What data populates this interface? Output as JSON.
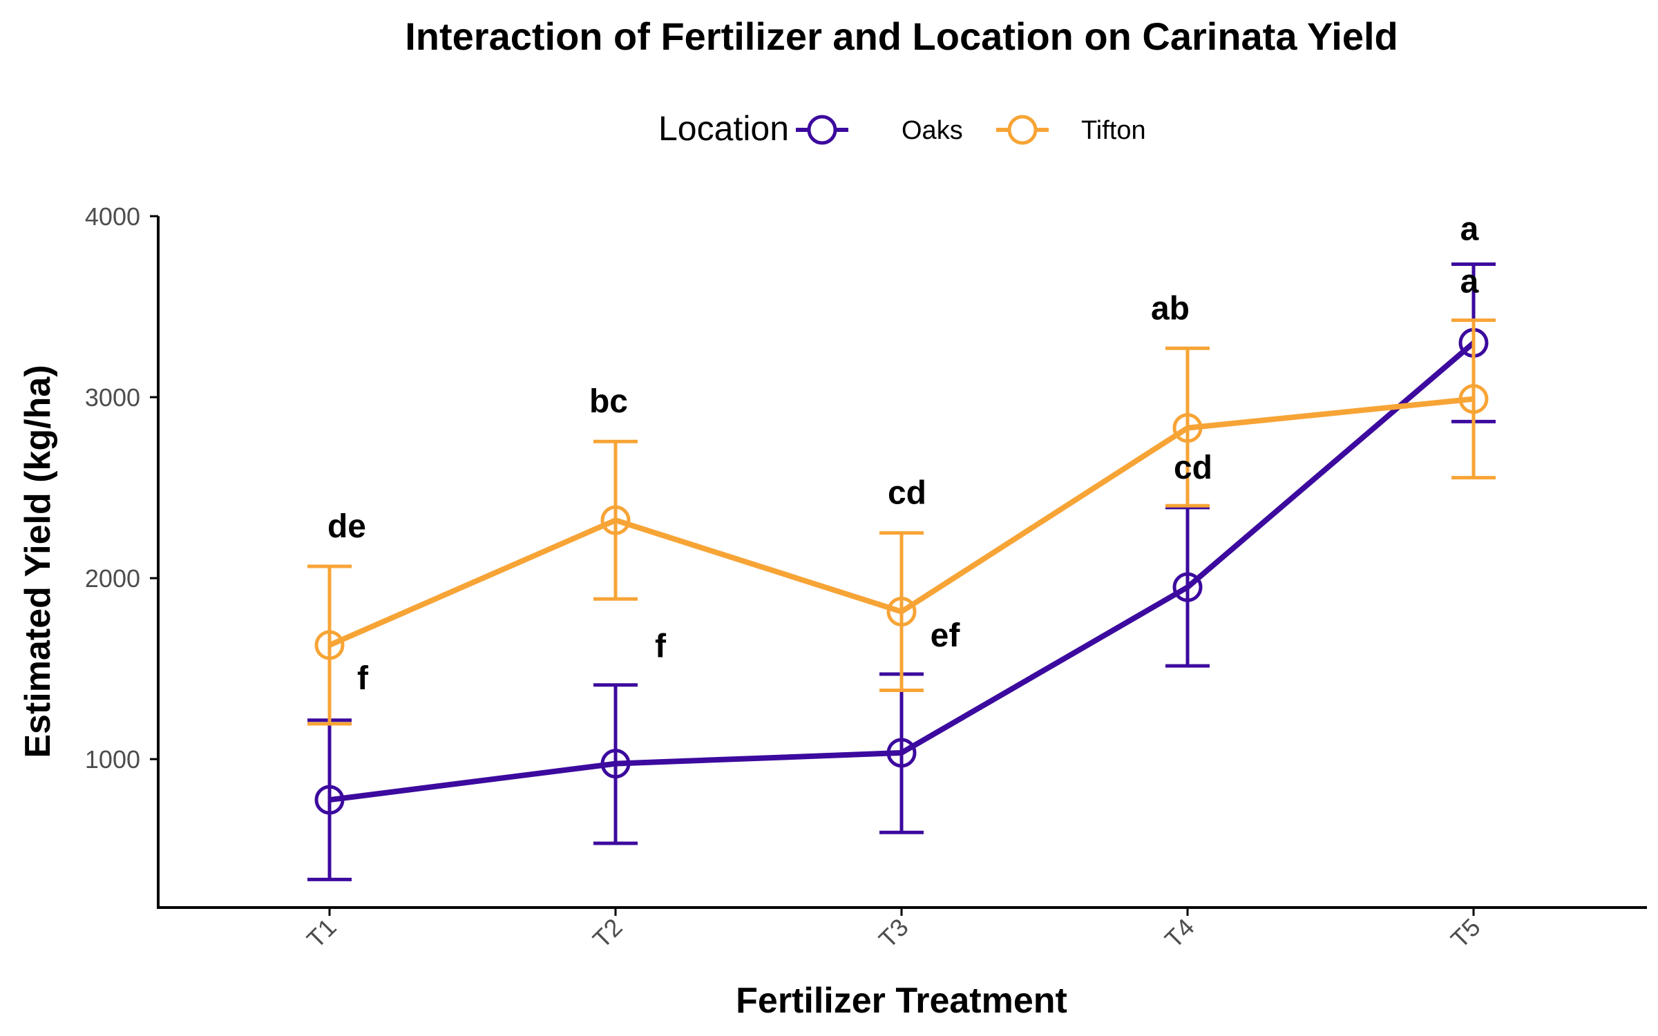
{
  "chart_data": {
    "type": "line",
    "title": "Interaction of Fertilizer and Location on Carinata Yield",
    "xlabel": "Fertilizer Treatment",
    "ylabel": "Estimated Yield (kg/ha)",
    "categories": [
      "T1",
      "T2",
      "T3",
      "T4",
      "T5"
    ],
    "yticks": [
      1000,
      2000,
      3000,
      4000
    ],
    "ylim": [
      180,
      4000
    ],
    "grid": false,
    "legend": {
      "title": "Location",
      "position": "top"
    },
    "series": [
      {
        "name": "Oaks",
        "color": "#3C0A9E",
        "values": [
          775,
          975,
          1035,
          1950,
          3300
        ],
        "err_low": [
          335,
          535,
          595,
          1515,
          2865
        ],
        "err_high": [
          1215,
          1410,
          1470,
          2390,
          3735
        ],
        "labels": [
          "f",
          "f",
          "ef",
          "cd",
          "a"
        ]
      },
      {
        "name": "Tifton",
        "color": "#F7A436",
        "values": [
          1630,
          2320,
          1815,
          2830,
          2990
        ],
        "err_low": [
          1195,
          1885,
          1380,
          2400,
          2555
        ],
        "err_high": [
          2065,
          2755,
          2250,
          3270,
          3425
        ],
        "labels": [
          "de",
          "bc",
          "cd",
          "ab",
          "a"
        ]
      }
    ]
  }
}
